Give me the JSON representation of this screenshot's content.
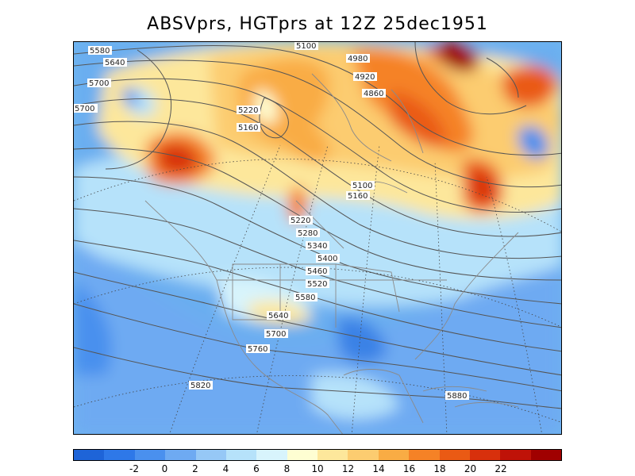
{
  "title": "ABSVprs, HGTprs at 12Z  25dec1951",
  "colorbar": {
    "colors": [
      "#1e64d8",
      "#2e78e8",
      "#4a90ee",
      "#6eaaf2",
      "#96c8f6",
      "#b6e2fa",
      "#d8f4fc",
      "#fefed2",
      "#fde79b",
      "#fccc70",
      "#f9ac44",
      "#f58226",
      "#ea5a14",
      "#d8300c",
      "#bf1208",
      "#a00000"
    ],
    "labels": [
      "-2",
      "0",
      "2",
      "4",
      "6",
      "8",
      "10",
      "12",
      "14",
      "16",
      "18",
      "20",
      "22"
    ]
  },
  "contour_labels": [
    "5580",
    "5640",
    "5700",
    "5700",
    "5100",
    "4980",
    "4920",
    "4860",
    "5220",
    "5160",
    "5100",
    "5160",
    "5220",
    "5280",
    "5340",
    "5400",
    "5460",
    "5520",
    "5580",
    "5640",
    "5700",
    "5760",
    "5820",
    "5880"
  ]
}
